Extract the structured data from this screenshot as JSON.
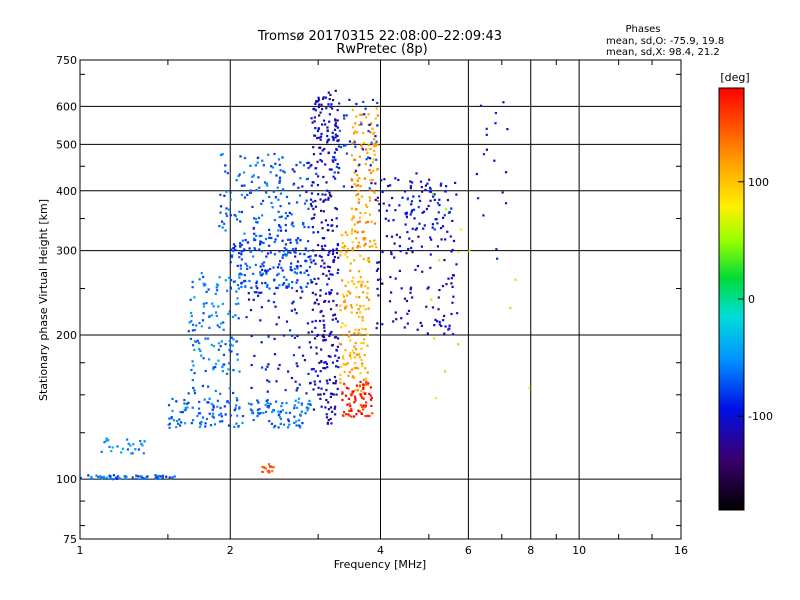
{
  "chart_data": {
    "type": "scatter",
    "title": "Tromsø 20170315 22:08:00–22:09:43",
    "subtitle": "RwPretec (8p)",
    "info": {
      "heading": "Phases",
      "line1": "mean, sd,O: -75.9, 19.8",
      "line2": "mean, sd,X:  98.4, 21.2"
    },
    "xlabel": "Frequency [MHz]",
    "ylabel": "Stationary phase Virtual Height [km]",
    "x_scale": "log",
    "y_scale": "log",
    "xlim": [
      1,
      16
    ],
    "ylim": [
      75,
      750
    ],
    "x_ticks": [
      1,
      2,
      4,
      6,
      8,
      10,
      16
    ],
    "y_ticks": [
      75,
      100,
      200,
      300,
      400,
      500,
      600,
      750
    ],
    "grid": true,
    "colorbar": {
      "label": "[deg]",
      "range": [
        -180,
        180
      ],
      "ticks": [
        100,
        0,
        -100
      ]
    },
    "clusters": [
      {
        "f": [
          1.0,
          1.55
        ],
        "h": [
          100,
          102
        ],
        "phase": -70,
        "n": 60
      },
      {
        "f": [
          1.05,
          1.35
        ],
        "h": [
          113,
          122
        ],
        "phase": -55,
        "n": 25
      },
      {
        "f": [
          1.5,
          2.9
        ],
        "h": [
          128,
          148
        ],
        "phase": -65,
        "n": 170
      },
      {
        "f": [
          1.65,
          2.1
        ],
        "h": [
          150,
          270
        ],
        "phase": -60,
        "n": 130
      },
      {
        "f": [
          2.0,
          2.9
        ],
        "h": [
          250,
          320
        ],
        "phase": -75,
        "n": 190
      },
      {
        "f": [
          1.9,
          2.6
        ],
        "h": [
          320,
          480
        ],
        "phase": -68,
        "n": 110
      },
      {
        "f": [
          2.5,
          3.0
        ],
        "h": [
          330,
          460
        ],
        "phase": -80,
        "n": 50
      },
      {
        "f": [
          2.15,
          2.9
        ],
        "h": [
          150,
          250
        ],
        "phase": -100,
        "n": 70
      },
      {
        "f": [
          2.9,
          3.3
        ],
        "h": [
          130,
          650
        ],
        "phase": -110,
        "n": 320
      },
      {
        "f": [
          3.3,
          3.8
        ],
        "h": [
          150,
          330
        ],
        "phase": 110,
        "n": 160
      },
      {
        "f": [
          3.35,
          3.85
        ],
        "h": [
          135,
          160
        ],
        "phase": 170,
        "n": 70
      },
      {
        "f": [
          3.5,
          3.95
        ],
        "h": [
          300,
          600
        ],
        "phase": 120,
        "n": 120
      },
      {
        "f": [
          3.9,
          5.7
        ],
        "h": [
          200,
          430
        ],
        "phase": -110,
        "n": 160
      },
      {
        "f": [
          4.5,
          5.6
        ],
        "h": [
          330,
          440
        ],
        "phase": -95,
        "n": 45
      },
      {
        "f": [
          3.2,
          3.95
        ],
        "h": [
          400,
          640
        ],
        "phase": -85,
        "n": 50
      },
      {
        "f": [
          2.3,
          2.45
        ],
        "h": [
          103,
          108
        ],
        "phase": 150,
        "n": 14
      },
      {
        "f": [
          6.2,
          7.2
        ],
        "h": [
          240,
          650
        ],
        "phase": -100,
        "n": 18
      },
      {
        "f": [
          5.0,
          8.0
        ],
        "h": [
          130,
          600
        ],
        "phase": 60,
        "n": 14
      }
    ]
  }
}
